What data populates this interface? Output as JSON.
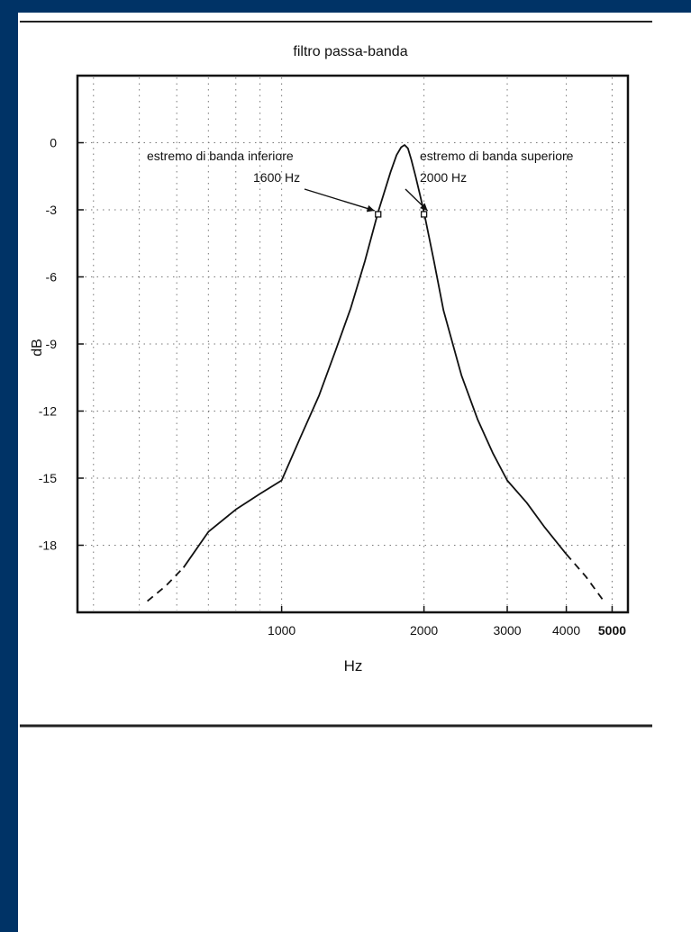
{
  "chart_data": {
    "type": "line",
    "title": "filtro passa-banda",
    "xlabel": "Hz",
    "ylabel": "dB",
    "xscale": "log",
    "xlim": [
      370,
      5400
    ],
    "ylim": [
      -21,
      3
    ],
    "grid": true,
    "legend": "none",
    "x_ticks": [
      {
        "value": 1000,
        "label": "1000"
      },
      {
        "value": 2000,
        "label": "2000"
      },
      {
        "value": 3000,
        "label": "3000"
      },
      {
        "value": 4000,
        "label": "4000"
      },
      {
        "value": 5000,
        "label": "5000"
      }
    ],
    "x_minor_gridlines": [
      400,
      500,
      600,
      700,
      800,
      900,
      5000
    ],
    "y_ticks": [
      {
        "value": 0,
        "label": "0"
      },
      {
        "value": -3,
        "label": "-3"
      },
      {
        "value": -6,
        "label": "-6"
      },
      {
        "value": -9,
        "label": "-9"
      },
      {
        "value": -12,
        "label": "-12"
      },
      {
        "value": -15,
        "label": "-15"
      },
      {
        "value": -18,
        "label": "-18"
      }
    ],
    "series": [
      {
        "style": "solid",
        "x": [
          620,
          700,
          800,
          900,
          1000,
          1100,
          1200,
          1300,
          1400,
          1500,
          1600,
          1700,
          1750,
          1790,
          1820,
          1850,
          1880,
          1920,
          1960,
          2000,
          2100,
          2200,
          2400,
          2600,
          2800,
          3000,
          3300,
          3600,
          4000
        ],
        "y": [
          -19.0,
          -17.4,
          -16.4,
          -15.7,
          -15.1,
          -13.1,
          -11.3,
          -9.3,
          -7.4,
          -5.3,
          -3.1,
          -1.3,
          -0.55,
          -0.2,
          -0.1,
          -0.25,
          -0.75,
          -1.5,
          -2.3,
          -3.1,
          -5.3,
          -7.5,
          -10.4,
          -12.4,
          -13.9,
          -15.1,
          -16.1,
          -17.2,
          -18.4
        ]
      },
      {
        "style": "dashed",
        "x": [
          520,
          570,
          620
        ],
        "y": [
          -20.5,
          -19.8,
          -19.0
        ]
      },
      {
        "style": "dashed",
        "x": [
          4000,
          4400,
          4800
        ],
        "y": [
          -18.4,
          -19.4,
          -20.5
        ]
      }
    ],
    "markers": [
      {
        "x": 1600,
        "y": -3.2
      },
      {
        "x": 2000,
        "y": -3.2
      }
    ],
    "annotations": [
      {
        "id": "lower",
        "lines": [
          "estremo di banda inferiore",
          "1600 Hz"
        ],
        "target_x": 1600,
        "target_y": -3.2
      },
      {
        "id": "upper",
        "lines": [
          "estremo di banda superiore",
          "2000 Hz"
        ],
        "target_x": 2000,
        "target_y": -3.2
      }
    ]
  }
}
